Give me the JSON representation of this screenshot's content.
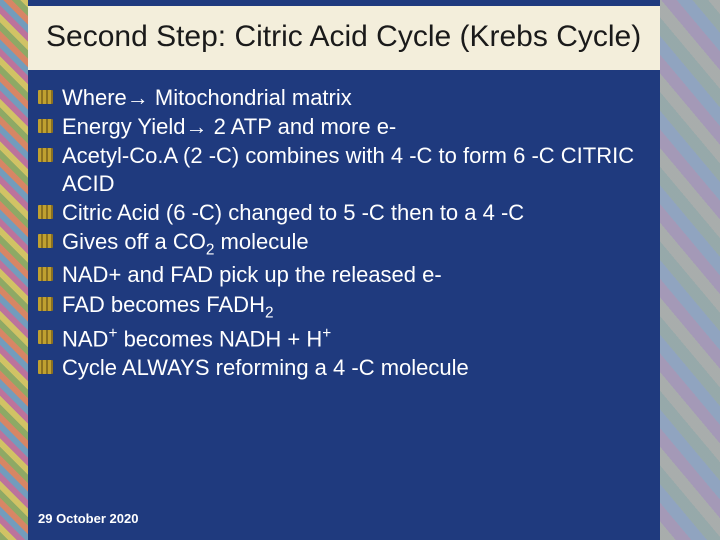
{
  "slide": {
    "background_color": "#1f3a7e",
    "title_box_bg": "#f3eedb",
    "title_color": "#1a1a1a",
    "body_text_color": "#ffffff",
    "title_fontsize": 30,
    "body_fontsize": 22,
    "bullet_icon_color": "#c0a030",
    "decorative_left_width": 28,
    "decorative_right_width": 60,
    "title": "Second Step:  Citric Acid Cycle (Krebs Cycle)",
    "bullets": [
      {
        "html": "Where→ Mitochondrial matrix"
      },
      {
        "html": "Energy Yield→ 2 ATP and more e-"
      },
      {
        "html": "Acetyl-Co.A (2 -C) combines with 4 -C to form 6 -C CITRIC ACID"
      },
      {
        "html": "Citric Acid (6 -C) changed to 5 -C then to a 4 -C"
      },
      {
        "html": "Gives off a CO<sub>2</sub> molecule"
      },
      {
        "html": "NAD+ and FAD pick up the released e-"
      },
      {
        "html": "FAD becomes FADH<sub>2</sub>"
      },
      {
        "html": "NAD<sup>+</sup> becomes NADH + H<sup>+</sup>"
      },
      {
        "html": "Cycle ALWAYS reforming a 4 -C molecule"
      }
    ],
    "footer_date": "29 October 2020"
  }
}
